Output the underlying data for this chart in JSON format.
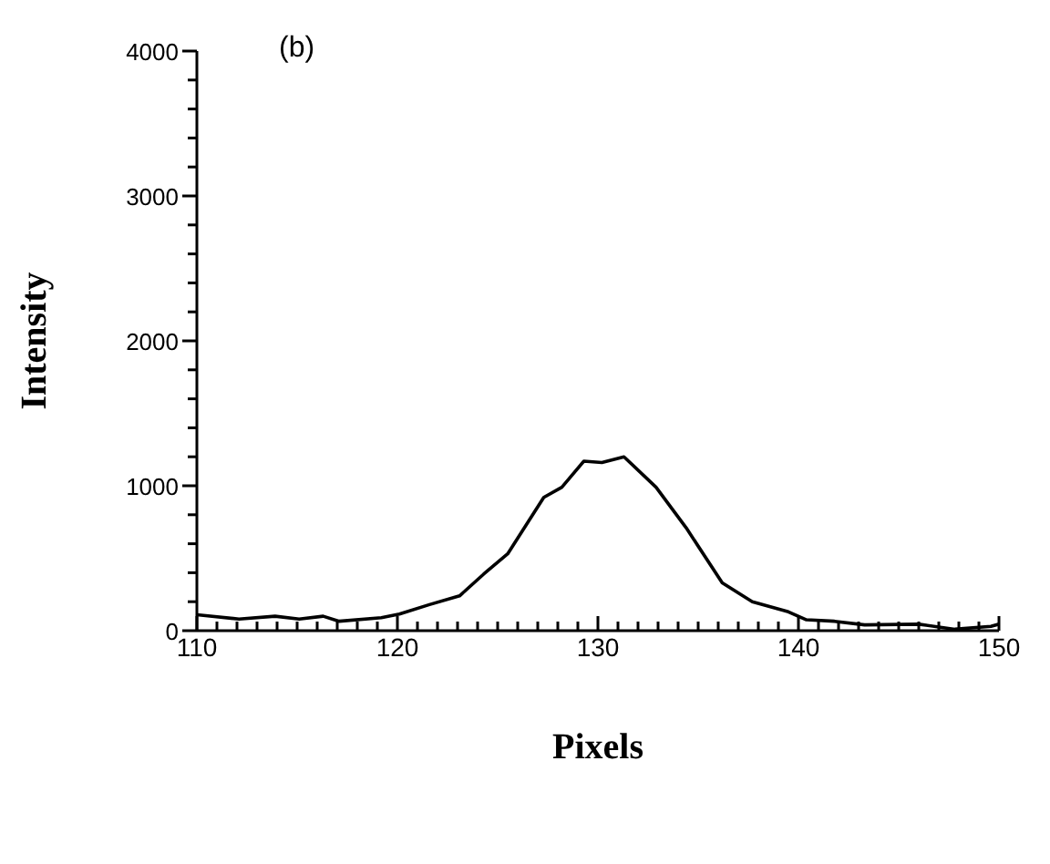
{
  "chart_data": {
    "type": "line",
    "xlabel": "Pixels",
    "ylabel": "Intensity",
    "annotations": [
      "(b)"
    ],
    "x": [
      110,
      112.1,
      113.9,
      115.1,
      116.3,
      117.1,
      119.2,
      120.1,
      121.6,
      123.1,
      124.3,
      125.5,
      127.3,
      128.2,
      129.3,
      130.2,
      131.3,
      132.9,
      134.4,
      136.2,
      137.7,
      139.5,
      140.4,
      141.8,
      143.3,
      146,
      147.8,
      149.6,
      150
    ],
    "series": [
      {
        "color": "#000000",
        "values": [
          110,
          80,
          100,
          80,
          100,
          65,
          90,
          115,
          180,
          240,
          390,
          530,
          920,
          990,
          1170,
          1160,
          1200,
          990,
          710,
          330,
          200,
          130,
          75,
          65,
          40,
          45,
          10,
          30,
          45
        ]
      }
    ],
    "xlim": [
      110,
      150
    ],
    "ylim": [
      0,
      4000
    ],
    "xticks": [
      110,
      {
        "value": 111,
        "label": null
      },
      {
        "value": 112,
        "label": null
      },
      {
        "value": 113,
        "label": null
      },
      {
        "value": 114,
        "label": null
      },
      {
        "value": 115,
        "label": null
      },
      {
        "value": 116,
        "label": null
      },
      {
        "value": 117,
        "label": null
      },
      {
        "value": 118,
        "label": null
      },
      {
        "value": 119,
        "label": null
      },
      120,
      {
        "value": 121,
        "label": null
      },
      {
        "value": 122,
        "label": null
      },
      {
        "value": 123,
        "label": null
      },
      {
        "value": 124,
        "label": null
      },
      {
        "value": 125,
        "label": null
      },
      {
        "value": 126,
        "label": null
      },
      {
        "value": 127,
        "label": null
      },
      {
        "value": 128,
        "label": null
      },
      {
        "value": 129,
        "label": null
      },
      130,
      {
        "value": 131,
        "label": null
      },
      {
        "value": 132,
        "label": null
      },
      {
        "value": 133,
        "label": null
      },
      {
        "value": 134,
        "label": null
      },
      {
        "value": 135,
        "label": null
      },
      {
        "value": 136,
        "label": null
      },
      {
        "value": 137,
        "label": null
      },
      {
        "value": 138,
        "label": null
      },
      {
        "value": 139,
        "label": null
      },
      140,
      {
        "value": 141,
        "label": null
      },
      {
        "value": 142,
        "label": null
      },
      {
        "value": 143,
        "label": null
      },
      {
        "value": 144,
        "label": null
      },
      {
        "value": 145,
        "label": null
      },
      {
        "value": 146,
        "label": null
      },
      {
        "value": 147,
        "label": null
      },
      {
        "value": 148,
        "label": null
      },
      {
        "value": 149,
        "label": null
      },
      150
    ],
    "yticks": [
      0,
      {
        "value": 200,
        "label": null
      },
      {
        "value": 400,
        "label": null
      },
      {
        "value": 600,
        "label": null
      },
      {
        "value": 800,
        "label": null
      },
      1000,
      {
        "value": 1200,
        "label": null
      },
      {
        "value": 1400,
        "label": null
      },
      {
        "value": 1600,
        "label": null
      },
      {
        "value": 1800,
        "label": null
      },
      2000,
      {
        "value": 2200,
        "label": null
      },
      {
        "value": 2400,
        "label": null
      },
      {
        "value": 2600,
        "label": null
      },
      {
        "value": 2800,
        "label": null
      },
      3000,
      {
        "value": 3200,
        "label": null
      },
      {
        "value": 3400,
        "label": null
      },
      {
        "value": 3600,
        "label": null
      },
      {
        "value": 3800,
        "label": null
      },
      4000
    ],
    "grid": false,
    "legend": false,
    "marker": "none",
    "line_style": "solid"
  }
}
